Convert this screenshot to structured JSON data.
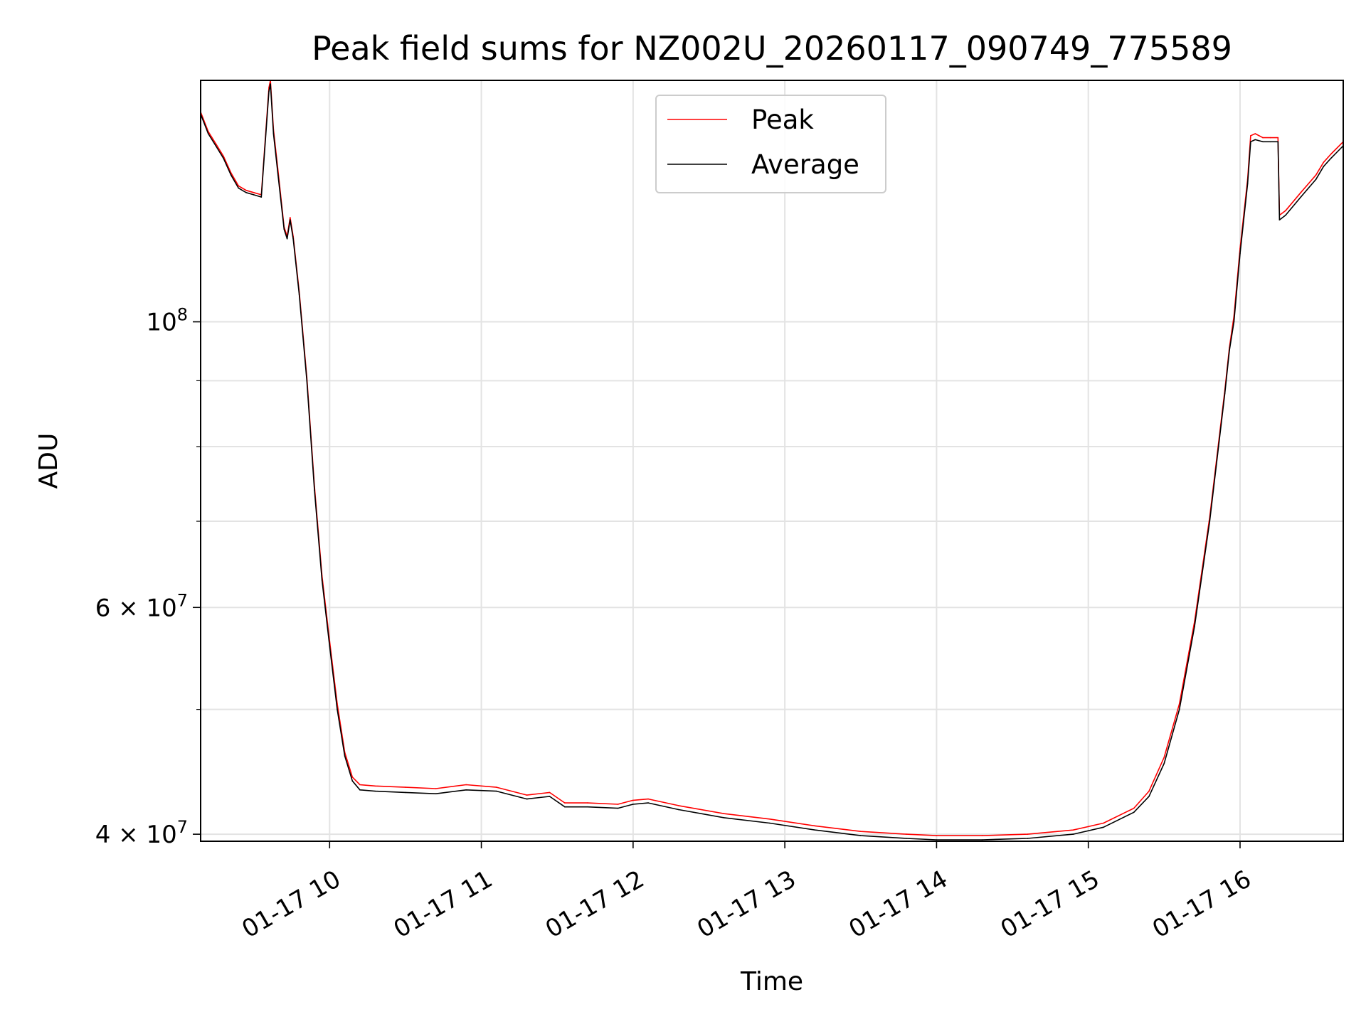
{
  "chart_data": {
    "type": "line",
    "title": "Peak field sums for NZ002U_20260117_090749_775589",
    "xlabel": "Time",
    "ylabel": "ADU",
    "yscale": "log",
    "ylim": [
      39500000,
      154000000
    ],
    "x_unit": "hours (decimal, 2026-01-17)",
    "xlim": [
      9.15,
      16.68
    ],
    "x_ticks": [
      {
        "value": 10,
        "label": "01-17 10"
      },
      {
        "value": 11,
        "label": "01-17 11"
      },
      {
        "value": 12,
        "label": "01-17 12"
      },
      {
        "value": 13,
        "label": "01-17 13"
      },
      {
        "value": 14,
        "label": "01-17 14"
      },
      {
        "value": 15,
        "label": "01-17 15"
      },
      {
        "value": 16,
        "label": "01-17 16"
      }
    ],
    "y_major_ticks": [
      {
        "value": 40000000,
        "mant": "4",
        "exp": "7"
      },
      {
        "value": 60000000,
        "mant": "6",
        "exp": "7"
      },
      {
        "value": 100000000,
        "base": "10",
        "exp": "8"
      }
    ],
    "y_minor_ticks": [
      50000000,
      70000000,
      80000000,
      90000000
    ],
    "grid": true,
    "legend": {
      "position": "top-center",
      "entries": [
        "Peak",
        "Average"
      ]
    },
    "colors": {
      "peak": "#ff0000",
      "average": "#000000",
      "grid": "#e3e3e3"
    },
    "series": [
      {
        "name": "Average",
        "x": [
          9.15,
          9.2,
          9.25,
          9.3,
          9.35,
          9.4,
          9.45,
          9.5,
          9.55,
          9.6,
          9.61,
          9.63,
          9.66,
          9.7,
          9.72,
          9.74,
          9.76,
          9.8,
          9.85,
          9.9,
          9.95,
          10.0,
          10.05,
          10.1,
          10.15,
          10.2,
          10.3,
          10.5,
          10.7,
          10.9,
          11.1,
          11.3,
          11.45,
          11.55,
          11.7,
          11.9,
          12.0,
          12.1,
          12.3,
          12.6,
          12.9,
          13.2,
          13.5,
          13.8,
          14.0,
          14.3,
          14.6,
          14.9,
          15.1,
          15.3,
          15.4,
          15.5,
          15.6,
          15.7,
          15.8,
          15.9,
          15.93,
          15.96,
          16.0,
          16.05,
          16.07,
          16.1,
          16.15,
          16.2,
          16.25,
          16.26,
          16.3,
          16.4,
          16.5,
          16.55,
          16.6,
          16.68
        ],
        "y": [
          145000000,
          140000000,
          137000000,
          134000000,
          130000000,
          127000000,
          126000000,
          125500000,
          125000000,
          151000000,
          153000000,
          140000000,
          130000000,
          118000000,
          116000000,
          120000000,
          116000000,
          105000000,
          90000000,
          74000000,
          63000000,
          56000000,
          50000000,
          46000000,
          44000000,
          43300000,
          43200000,
          43100000,
          43000000,
          43300000,
          43200000,
          42600000,
          42800000,
          42000000,
          42000000,
          41900000,
          42200000,
          42300000,
          41800000,
          41200000,
          40800000,
          40300000,
          39900000,
          39700000,
          39600000,
          39600000,
          39700000,
          40000000,
          40500000,
          41600000,
          42800000,
          45400000,
          50000000,
          58000000,
          70000000,
          88000000,
          95000000,
          100000000,
          113000000,
          128000000,
          138000000,
          138500000,
          138000000,
          138000000,
          138000000,
          120000000,
          121000000,
          125000000,
          129000000,
          132000000,
          134000000,
          137000000
        ]
      },
      {
        "name": "Peak",
        "x": [
          9.15,
          9.2,
          9.25,
          9.3,
          9.35,
          9.4,
          9.45,
          9.5,
          9.55,
          9.6,
          9.61,
          9.63,
          9.66,
          9.7,
          9.72,
          9.74,
          9.76,
          9.8,
          9.85,
          9.9,
          9.95,
          10.0,
          10.05,
          10.1,
          10.15,
          10.2,
          10.3,
          10.5,
          10.7,
          10.9,
          11.1,
          11.3,
          11.45,
          11.55,
          11.7,
          11.9,
          12.0,
          12.1,
          12.3,
          12.6,
          12.9,
          13.2,
          13.5,
          13.8,
          14.0,
          14.3,
          14.6,
          14.9,
          15.1,
          15.3,
          15.4,
          15.5,
          15.6,
          15.7,
          15.8,
          15.9,
          15.93,
          15.96,
          16.0,
          16.05,
          16.07,
          16.1,
          16.15,
          16.2,
          16.25,
          16.26,
          16.3,
          16.4,
          16.5,
          16.55,
          16.6,
          16.68
        ],
        "y": [
          145500000,
          140500000,
          137500000,
          134500000,
          130500000,
          127500000,
          126500000,
          126000000,
          125500000,
          152000000,
          154000000,
          141000000,
          131000000,
          118500000,
          116500000,
          120500000,
          116500000,
          105500000,
          90500000,
          74500000,
          63500000,
          56500000,
          50500000,
          46300000,
          44300000,
          43700000,
          43600000,
          43500000,
          43400000,
          43700000,
          43500000,
          42900000,
          43100000,
          42300000,
          42300000,
          42200000,
          42500000,
          42600000,
          42100000,
          41500000,
          41100000,
          40600000,
          40200000,
          40000000,
          39900000,
          39900000,
          40000000,
          40300000,
          40800000,
          41900000,
          43200000,
          45900000,
          50500000,
          58500000,
          70500000,
          88500000,
          95500000,
          101000000,
          114000000,
          129000000,
          139500000,
          140000000,
          139000000,
          139000000,
          139000000,
          121000000,
          122000000,
          126000000,
          130000000,
          133000000,
          135000000,
          138000000
        ]
      }
    ]
  }
}
